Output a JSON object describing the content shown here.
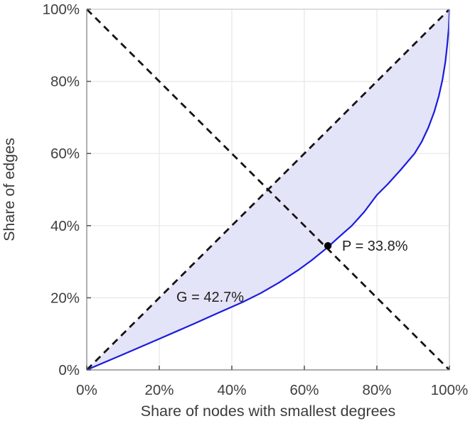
{
  "chart_data": {
    "type": "line",
    "title": "",
    "xlabel": "Share of nodes with smallest degrees",
    "ylabel": "Share of edges",
    "xlim": [
      0,
      100
    ],
    "ylim": [
      0,
      100
    ],
    "grid": true,
    "legend": "none",
    "x_tick_values": [
      0,
      20,
      40,
      60,
      80,
      100
    ],
    "x_tick_labels": [
      "0%",
      "20%",
      "40%",
      "60%",
      "80%",
      "100%"
    ],
    "y_tick_values": [
      0,
      20,
      40,
      60,
      80,
      100
    ],
    "y_tick_labels": [
      "0%",
      "20%",
      "40%",
      "60%",
      "80%",
      "100%"
    ],
    "series": [
      {
        "name": "lorenz-curve",
        "style": "solid",
        "color": "#1a1ae0",
        "width": 2.2,
        "points": [
          [
            0,
            0
          ],
          [
            10,
            4.3
          ],
          [
            20,
            8.6
          ],
          [
            30,
            13.0
          ],
          [
            36,
            15.7
          ],
          [
            43,
            18.8
          ],
          [
            48,
            21.3
          ],
          [
            53,
            24.2
          ],
          [
            58.5,
            27.8
          ],
          [
            62,
            30.4
          ],
          [
            66.2,
            33.8
          ],
          [
            69.5,
            36.8
          ],
          [
            73.1,
            40.0
          ],
          [
            76.5,
            43.8
          ],
          [
            80,
            48.5
          ],
          [
            83,
            51.5
          ],
          [
            86.5,
            55.4
          ],
          [
            90.4,
            60.0
          ],
          [
            92.4,
            63.3
          ],
          [
            94.2,
            67.2
          ],
          [
            95.8,
            71.5
          ],
          [
            97.1,
            76.0
          ],
          [
            98.1,
            80.5
          ],
          [
            98.9,
            85.5
          ],
          [
            99.4,
            90.0
          ],
          [
            99.8,
            94.5
          ],
          [
            100,
            100
          ]
        ]
      },
      {
        "name": "equality-diagonal",
        "style": "dashed",
        "color": "#141414",
        "width": 2.8,
        "points": [
          [
            0,
            0
          ],
          [
            100,
            100
          ]
        ]
      },
      {
        "name": "anti-diagonal",
        "style": "dashed",
        "color": "#141414",
        "width": 2.8,
        "points": [
          [
            0,
            100
          ],
          [
            100,
            0
          ]
        ]
      }
    ],
    "fill_between": {
      "name": "gini-area-fill",
      "color": "#e4e4f8",
      "between": [
        "equality-diagonal",
        "lorenz-curve"
      ]
    },
    "point_marker": {
      "name": "p-point-marker",
      "x": 66.5,
      "y": 34.4,
      "color": "#000000",
      "radius": 5.2
    },
    "annotations": [
      {
        "name": "gini-label",
        "text": "G = 42.7%",
        "x": 24.7,
        "y": 20.3,
        "anchor": "start"
      },
      {
        "name": "p-label",
        "text": "P = 33.8%",
        "x": 70.4,
        "y": 34.4,
        "anchor": "start"
      }
    ],
    "colors": {
      "curve": "#1a1ae0",
      "fill": "#e4e4f8",
      "dashed": "#141414",
      "grid": "#e7e7e7",
      "axis": "#8f8f8f",
      "box": "#c9c9c9",
      "tick": "#5a5a5a",
      "tick_text": "#3f3f3f",
      "label_text": "#3b3b3b",
      "annotation_text": "#1f1f1f"
    }
  }
}
